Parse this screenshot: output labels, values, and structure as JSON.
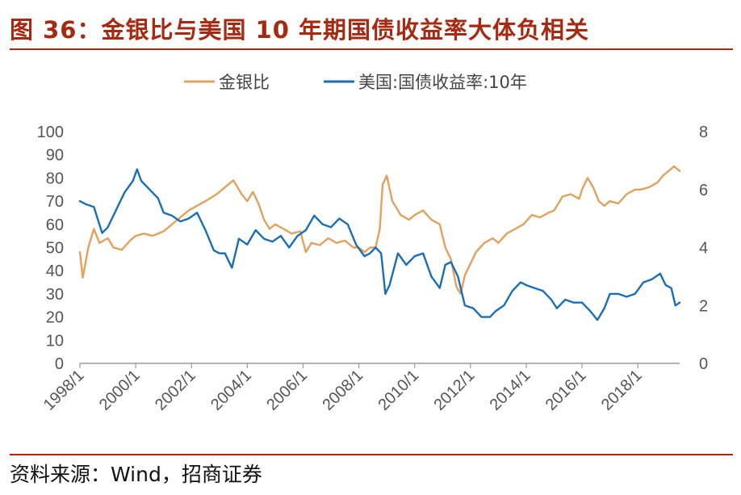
{
  "header": {
    "title": "图 36：金银比与美国 10 年期国债收益率大体负相关"
  },
  "footer": {
    "source": "资料来源：Wind，招商证券"
  },
  "chart_data": {
    "type": "line",
    "legend_position": "top-center",
    "grid": false,
    "x_tick_labels": [
      "1998/1",
      "2000/1",
      "2002/1",
      "2004/1",
      "2006/1",
      "2008/1",
      "2010/1",
      "2012/1",
      "2014/1",
      "2016/1",
      "2018/1"
    ],
    "x_range": [
      1998.0,
      2019.5
    ],
    "y_left": {
      "ticks": [
        0,
        10,
        20,
        30,
        40,
        50,
        60,
        70,
        80,
        90,
        100
      ],
      "range": [
        0,
        100
      ]
    },
    "y_right": {
      "ticks": [
        0,
        2,
        4,
        6,
        8
      ],
      "range": [
        0,
        8
      ]
    },
    "series": [
      {
        "name": "金银比",
        "axis": "left",
        "color": "#e0a25c",
        "x": [
          1998.0,
          1998.1,
          1998.3,
          1998.5,
          1998.7,
          1999.0,
          1999.2,
          1999.5,
          1999.8,
          2000.0,
          2000.3,
          2000.6,
          2001.0,
          2001.3,
          2001.6,
          2001.9,
          2002.2,
          2002.5,
          2002.9,
          2003.2,
          2003.5,
          2003.8,
          2004.0,
          2004.2,
          2004.4,
          2004.6,
          2004.8,
          2005.0,
          2005.3,
          2005.6,
          2005.9,
          2006.1,
          2006.3,
          2006.6,
          2006.9,
          2007.2,
          2007.5,
          2007.8,
          2008.0,
          2008.2,
          2008.4,
          2008.6,
          2008.75,
          2008.85,
          2009.0,
          2009.2,
          2009.5,
          2009.8,
          2010.0,
          2010.3,
          2010.6,
          2010.9,
          2011.1,
          2011.3,
          2011.5,
          2011.65,
          2011.8,
          2012.0,
          2012.2,
          2012.5,
          2012.8,
          2013.0,
          2013.3,
          2013.6,
          2013.9,
          2014.2,
          2014.5,
          2014.8,
          2015.0,
          2015.3,
          2015.6,
          2015.9,
          2016.0,
          2016.2,
          2016.4,
          2016.6,
          2016.8,
          2017.0,
          2017.3,
          2017.6,
          2017.9,
          2018.1,
          2018.4,
          2018.7,
          2018.9,
          2019.1,
          2019.3,
          2019.5
        ],
        "y": [
          48,
          37,
          50,
          58,
          52,
          54,
          50,
          49,
          53,
          55,
          56,
          55,
          57,
          60,
          63,
          66,
          68,
          70,
          73,
          76,
          79,
          73,
          70,
          74,
          69,
          62,
          58,
          60,
          58,
          56,
          57,
          48,
          52,
          51,
          54,
          52,
          53,
          50,
          50,
          48,
          50,
          50,
          58,
          77,
          81,
          70,
          64,
          62,
          64,
          66,
          62,
          60,
          50,
          45,
          33,
          30,
          38,
          43,
          48,
          52,
          54,
          52,
          56,
          58,
          60,
          64,
          63,
          65,
          66,
          72,
          73,
          71,
          75,
          80,
          76,
          70,
          68,
          70,
          69,
          73,
          75,
          75,
          76,
          78,
          81,
          83,
          85,
          83
        ]
      },
      {
        "name": "美国:国债收益率:10年",
        "axis": "right",
        "color": "#1a6fb4",
        "x": [
          1998.0,
          1998.2,
          1998.5,
          1998.8,
          1999.0,
          1999.3,
          1999.6,
          1999.9,
          2000.05,
          2000.2,
          2000.5,
          2000.8,
          2001.0,
          2001.3,
          2001.6,
          2001.9,
          2002.2,
          2002.5,
          2002.8,
          2003.0,
          2003.2,
          2003.45,
          2003.7,
          2004.0,
          2004.3,
          2004.6,
          2004.9,
          2005.2,
          2005.5,
          2005.8,
          2006.1,
          2006.4,
          2006.7,
          2007.0,
          2007.3,
          2007.6,
          2007.9,
          2008.2,
          2008.4,
          2008.6,
          2008.8,
          2008.95,
          2009.1,
          2009.4,
          2009.7,
          2010.0,
          2010.3,
          2010.6,
          2010.9,
          2011.1,
          2011.3,
          2011.55,
          2011.8,
          2012.1,
          2012.4,
          2012.7,
          2012.9,
          2013.2,
          2013.5,
          2013.8,
          2014.0,
          2014.3,
          2014.6,
          2014.9,
          2015.1,
          2015.4,
          2015.7,
          2016.0,
          2016.3,
          2016.55,
          2016.8,
          2017.0,
          2017.3,
          2017.6,
          2017.9,
          2018.2,
          2018.5,
          2018.8,
          2019.0,
          2019.2,
          2019.35,
          2019.5
        ],
        "y": [
          5.6,
          5.5,
          5.4,
          4.5,
          4.7,
          5.3,
          5.9,
          6.3,
          6.7,
          6.3,
          6.0,
          5.7,
          5.2,
          5.1,
          4.9,
          5.0,
          5.2,
          4.6,
          3.9,
          3.8,
          3.8,
          3.3,
          4.3,
          4.1,
          4.6,
          4.3,
          4.2,
          4.4,
          4.0,
          4.4,
          4.6,
          5.1,
          4.8,
          4.7,
          5.0,
          4.8,
          4.1,
          3.7,
          3.8,
          4.0,
          3.8,
          2.4,
          2.7,
          3.8,
          3.4,
          3.7,
          3.8,
          3.0,
          2.6,
          3.4,
          3.5,
          3.0,
          2.0,
          1.9,
          1.6,
          1.6,
          1.8,
          2.0,
          2.5,
          2.8,
          2.7,
          2.6,
          2.5,
          2.2,
          1.9,
          2.2,
          2.1,
          2.1,
          1.8,
          1.5,
          1.9,
          2.4,
          2.4,
          2.3,
          2.4,
          2.8,
          2.9,
          3.1,
          2.7,
          2.6,
          2.0,
          2.1
        ]
      }
    ]
  }
}
